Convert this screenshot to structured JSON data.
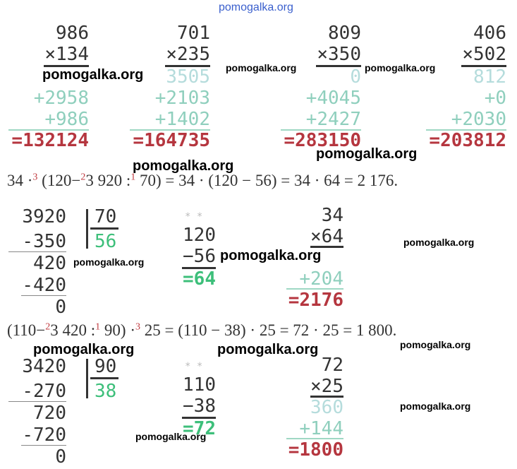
{
  "header": "pomogalka.org",
  "multiplications": [
    {
      "multiplicand": "986",
      "multiplier": "×134",
      "partials": [
        "+2958",
        "+986"
      ],
      "result": "=132124"
    },
    {
      "multiplicand": "701",
      "multiplier": "×235",
      "partials": [
        "3505",
        "+2103",
        "+1402"
      ],
      "result": "=164735"
    },
    {
      "multiplicand": "809",
      "multiplier": "×350",
      "partials": [
        "0",
        "+4045",
        "+2427"
      ],
      "result": "=283150"
    },
    {
      "multiplicand": "406",
      "multiplier": "×502",
      "partials": [
        "812",
        "+0",
        "+2030"
      ],
      "result": "=203812"
    }
  ],
  "examples": [
    {
      "equation": [
        "34 ·",
        "3",
        " (120−",
        "2",
        "3 920 :",
        "1",
        " 70) = 34 · (120 − 56) = 34 · 64 = 2 176."
      ],
      "division": {
        "dividend": "3920",
        "divisor": "70",
        "quotient": "56",
        "steps": [
          "-350",
          "420",
          "-420",
          "0"
        ]
      },
      "subtraction": {
        "marks": "* *",
        "minuend": "120",
        "subtrahend": "−56",
        "result": "=64"
      },
      "multiplication": {
        "multiplicand": "34",
        "multiplier": "×64",
        "partials": [
          "+204"
        ],
        "result": "=2176"
      }
    },
    {
      "equation": [
        "(110−",
        "2",
        "3 420 :",
        "1",
        " 90) ·",
        "3",
        " 25 = (110 − 38) · 25 = 72 · 25 = 1 800."
      ],
      "division": {
        "dividend": "3420",
        "divisor": "90",
        "quotient": "38",
        "steps": [
          "-270",
          "720",
          "-720",
          "0"
        ]
      },
      "subtraction": {
        "marks": "* *",
        "minuend": "110",
        "subtrahend": "−38",
        "result": "=72"
      },
      "multiplication": {
        "multiplicand": "72",
        "multiplier": "×25",
        "partials": [
          "360",
          "+144"
        ],
        "result": "=1800"
      }
    }
  ],
  "watermarks": [
    "pomogalka.org",
    "pomogalka.org",
    "pomogalka.org",
    "pomogalka.org",
    "pomogalka.org",
    "pomogalka.org",
    "pomogalka.org",
    "pomogalka.org",
    "pomogalka.org",
    "pomogalka.org",
    "pomogalka.org",
    "pomogalka.org",
    "pomogalka.org"
  ]
}
